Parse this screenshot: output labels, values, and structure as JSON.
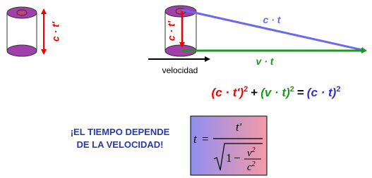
{
  "left_cylinder": {
    "label": "c · t'"
  },
  "right_cylinder": {
    "label": "c · t'"
  },
  "light_path_label": "c · t",
  "motion_label": "v · t",
  "velocity_label": "velocidad",
  "equation": {
    "part1": "(c · t')",
    "exp1": "2",
    "plus": "+",
    "part2": "(v · t)",
    "exp2": "2",
    "equals": "=",
    "part3": "(c · t)",
    "exp3": "2"
  },
  "conclusion": [
    "¡EL TIEMPO DEPENDE",
    "DE LA VELOCIDAD!"
  ],
  "formula": {
    "lhs": "t",
    "equals": "=",
    "numerator": "t'",
    "one": "1",
    "minus": "−",
    "v": "v",
    "v_exp": "2",
    "c": "c",
    "c_exp": "2"
  }
}
